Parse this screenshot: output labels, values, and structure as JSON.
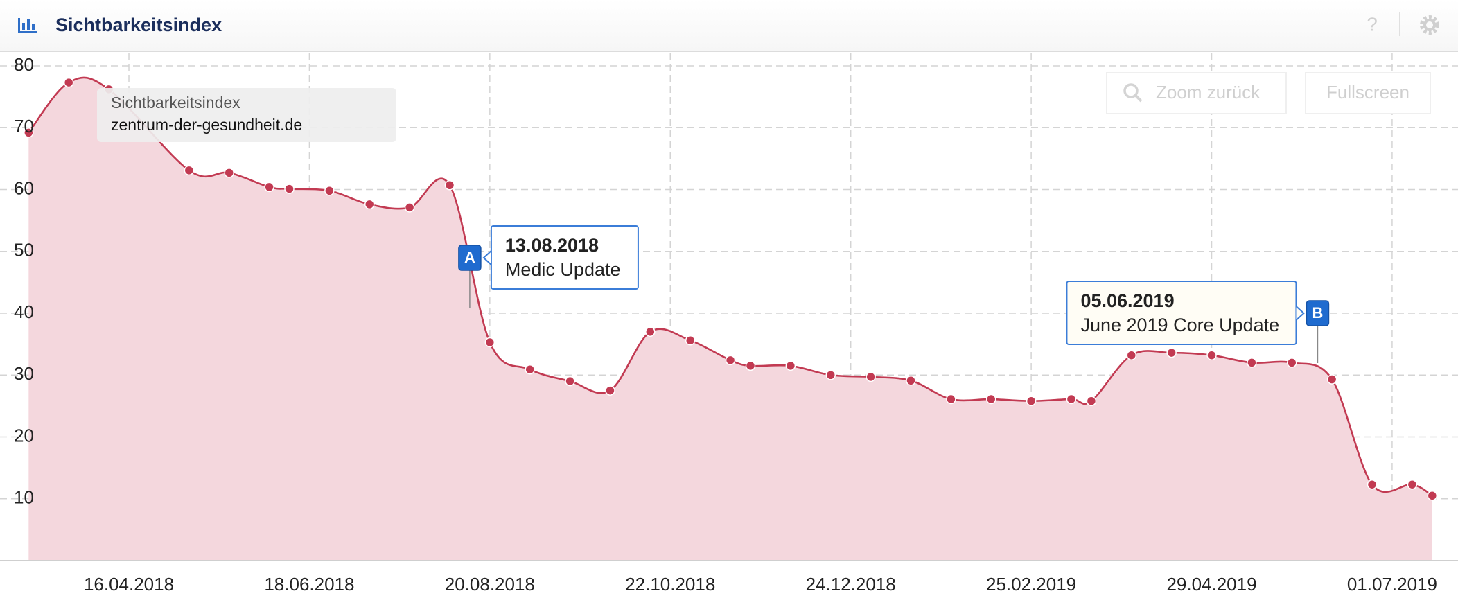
{
  "header": {
    "title": "Sichtbarkeitsindex"
  },
  "buttons": {
    "zoom": "Zoom zurück",
    "fullscreen": "Fullscreen",
    "help": "?"
  },
  "chart_data": {
    "type": "area",
    "legend_title": "Sichtbarkeitsindex",
    "x": [
      "12.03.2018",
      "26.03.2018",
      "09.04.2018",
      "07.05.2018",
      "21.05.2018",
      "04.06.2018",
      "11.06.2018",
      "25.06.2018",
      "09.07.2018",
      "23.07.2018",
      "06.08.2018",
      "20.08.2018",
      "03.09.2018",
      "17.09.2018",
      "01.10.2018",
      "15.10.2018",
      "29.10.2018",
      "12.11.2018",
      "19.11.2018",
      "03.12.2018",
      "17.12.2018",
      "31.12.2018",
      "14.01.2019",
      "28.01.2019",
      "11.02.2019",
      "25.02.2019",
      "11.03.2019",
      "18.03.2019",
      "01.04.2019",
      "15.04.2019",
      "29.04.2019",
      "13.05.2019",
      "27.05.2019",
      "10.06.2019",
      "24.06.2019",
      "08.07.2019",
      "15.07.2019"
    ],
    "series": [
      {
        "name": "zentrum-der-gesundheit.de",
        "color": "#c23a52",
        "fill": "#f4d7dd",
        "values": [
          69.2,
          77.3,
          76.2,
          63.1,
          62.7,
          60.4,
          60.1,
          59.8,
          57.6,
          57.1,
          60.7,
          35.3,
          30.9,
          29.0,
          27.5,
          37.0,
          35.6,
          32.4,
          31.5,
          31.5,
          30.0,
          29.7,
          29.1,
          26.1,
          26.1,
          25.8,
          26.1,
          25.8,
          33.2,
          33.6,
          33.2,
          32.0,
          32.0,
          29.3,
          12.3,
          12.3,
          10.5
        ]
      }
    ],
    "xlim": [
      "02.03.2018",
      "24.07.2019"
    ],
    "xticks": [
      "16.04.2018",
      "18.06.2018",
      "20.08.2018",
      "22.10.2018",
      "24.12.2018",
      "25.02.2019",
      "29.04.2019",
      "01.07.2019"
    ],
    "ylim": [
      0,
      80
    ],
    "yticks": [
      10,
      20,
      30,
      40,
      50,
      60,
      70,
      80
    ],
    "grid": true,
    "annotations": [
      {
        "letter": "A",
        "date": "13.08.2018",
        "text": "Medic Update"
      },
      {
        "letter": "B",
        "date": "05.06.2019",
        "text": "June 2019 Core Update"
      }
    ]
  }
}
